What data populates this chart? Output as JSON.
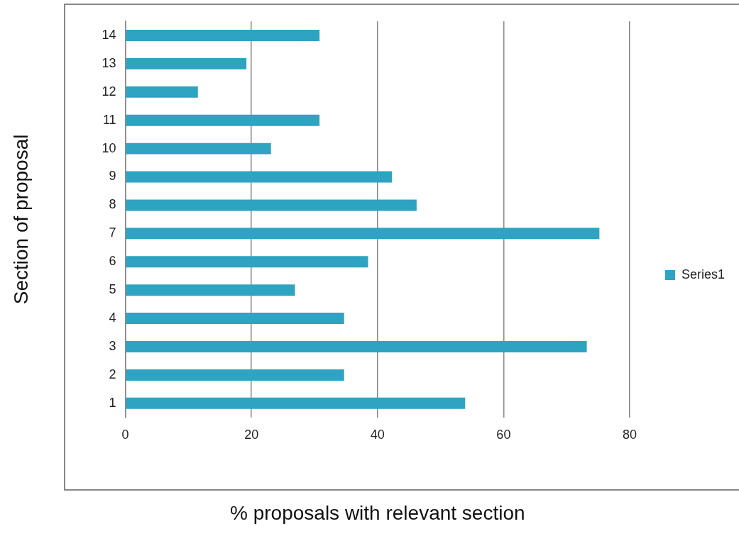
{
  "chart_data": {
    "type": "bar",
    "orientation": "horizontal",
    "xlabel": "% proposals with relevant section",
    "ylabel": "Section of proposal",
    "categories": [
      "14",
      "13",
      "12",
      "11",
      "10",
      "9",
      "8",
      "7",
      "6",
      "5",
      "4",
      "3",
      "2",
      "1"
    ],
    "series": [
      {
        "name": "Series1",
        "color": "#2ea3c2",
        "values": [
          30.8,
          19.2,
          11.5,
          30.8,
          23.1,
          42.3,
          46.2,
          75.2,
          38.5,
          26.9,
          34.7,
          73.2,
          34.7,
          53.9
        ]
      }
    ],
    "xlim": [
      0,
      80
    ],
    "xticks": [
      0,
      20,
      40,
      60,
      80
    ],
    "grid": "x",
    "legend": "right"
  }
}
